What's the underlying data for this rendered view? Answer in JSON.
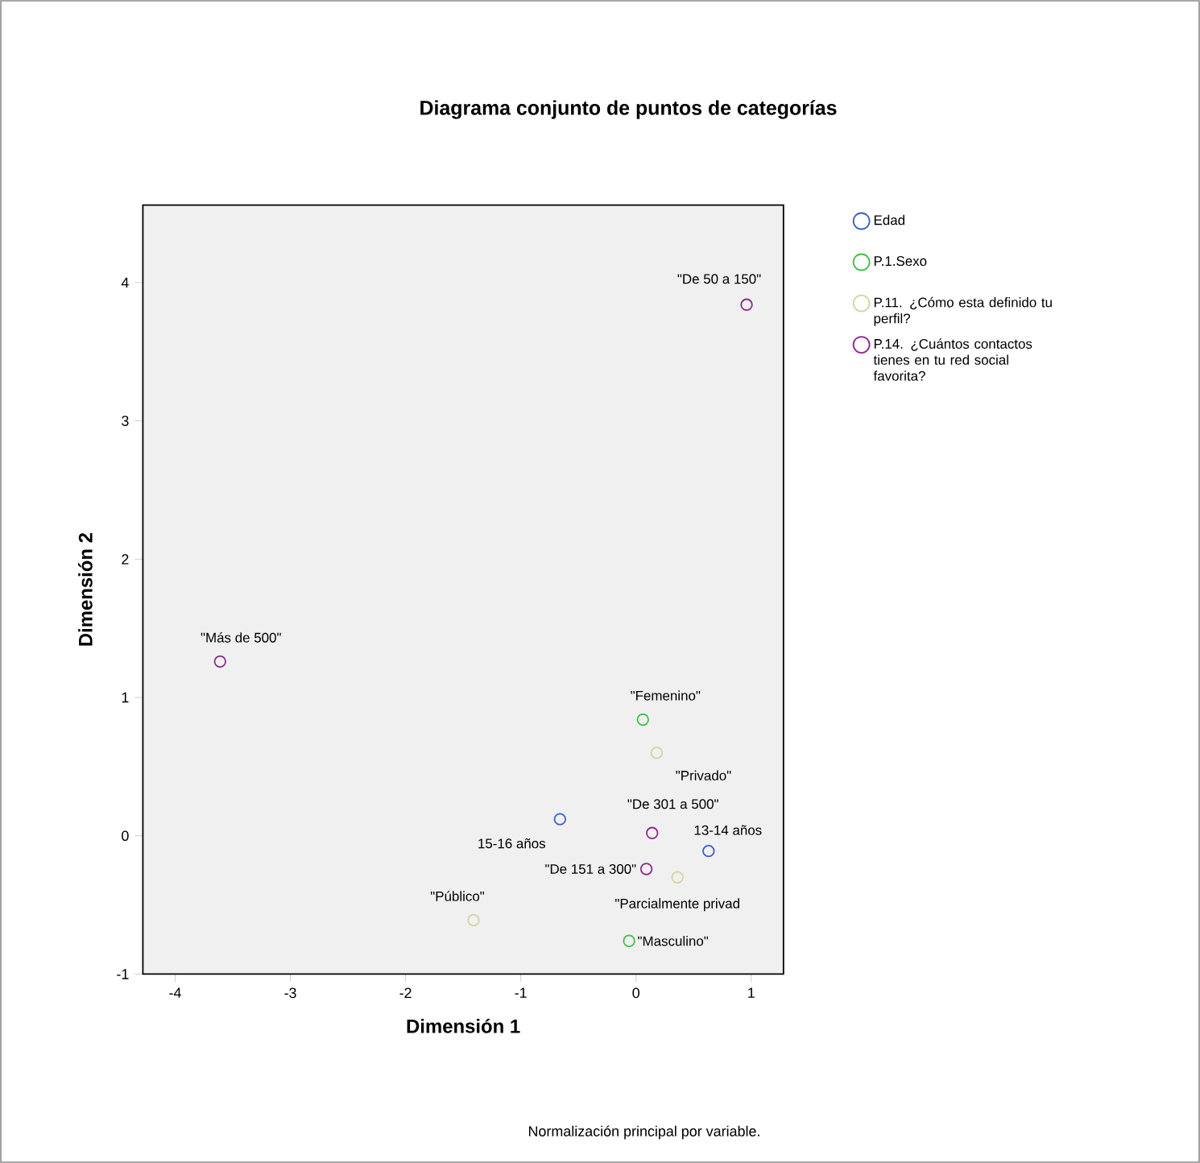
{
  "chart_data": {
    "type": "scatter",
    "title": "Diagrama conjunto de puntos de categorías",
    "xlabel": "Dimensión 1",
    "ylabel": "Dimensión 2",
    "xlim": [
      -4.28,
      1.28
    ],
    "ylim": [
      -1,
      4.56
    ],
    "xticks": [
      -4,
      -3,
      -2,
      -1,
      0,
      1
    ],
    "yticks": [
      -1,
      0,
      1,
      2,
      3,
      4
    ],
    "marker": "circle",
    "legend": "right",
    "series": [
      {
        "name": "Edad",
        "color": "#3a5fcd",
        "x": [
          -0.66,
          0.63
        ],
        "values": [
          0.12,
          -0.11
        ]
      },
      {
        "name": "P.1.Sexo",
        "color": "#3cc04a",
        "x": [
          0.06,
          -0.06
        ],
        "values": [
          0.84,
          -0.76
        ]
      },
      {
        "name": "P.11. ¿Cómo esta definido tu perfil?",
        "color": "#d8d2a0",
        "x": [
          0.18,
          0.36,
          -1.41
        ],
        "values": [
          0.6,
          -0.3,
          -0.61
        ]
      },
      {
        "name": "P.14. ¿Cuántos contactos tienes en tu red social favorita?",
        "color": "#8b2a8b",
        "x": [
          0.96,
          -3.61,
          0.14,
          0.09
        ],
        "values": [
          3.84,
          1.26,
          0.02,
          -0.24
        ]
      }
    ],
    "annotations": [
      {
        "text": "15-16 años",
        "x": -0.66,
        "y": 0.12
      },
      {
        "text": "13-14 años",
        "x": 0.63,
        "y": -0.11
      },
      {
        "text": "\"Femenino\"",
        "x": 0.06,
        "y": 0.84
      },
      {
        "text": "\"Masculino\"",
        "x": -0.06,
        "y": -0.76
      },
      {
        "text": "\"Privado\"",
        "x": 0.18,
        "y": 0.6
      },
      {
        "text": "\"Parcialmente privad",
        "x": 0.36,
        "y": -0.3
      },
      {
        "text": "\"Público\"",
        "x": -1.41,
        "y": -0.61
      },
      {
        "text": "\"De 50 a 150\"",
        "x": 0.96,
        "y": 3.84
      },
      {
        "text": "\"Más de 500\"",
        "x": -3.61,
        "y": 1.26
      },
      {
        "text": "\"De 301 a 500\"",
        "x": 0.14,
        "y": 0.02
      },
      {
        "text": "\"De 151 a 300\"",
        "x": 0.09,
        "y": -0.24
      },
      "Normalización principal por variable."
    ]
  }
}
